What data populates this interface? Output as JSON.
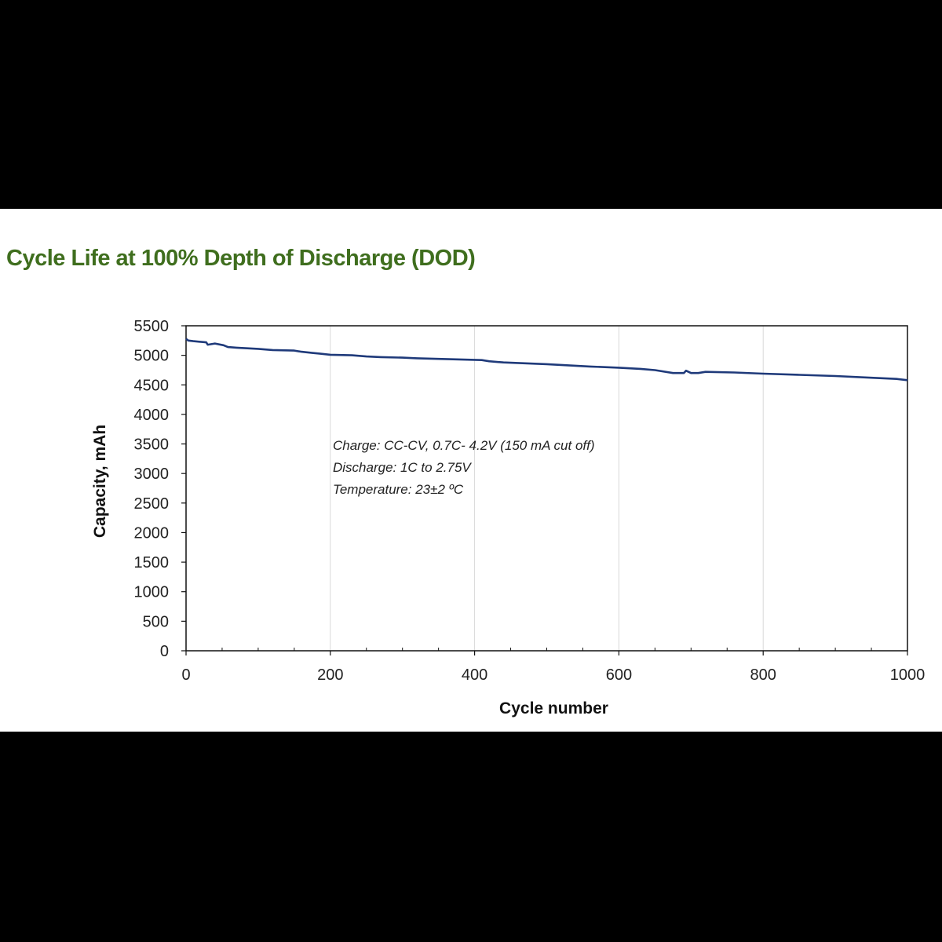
{
  "title": "Cycle Life at 100% Depth of Discharge (DOD)",
  "chart_data": {
    "type": "line",
    "title": "Cycle Life at 100% Depth of Discharge (DOD)",
    "xlabel": "Cycle number",
    "ylabel": "Capacity, mAh",
    "xlim": [
      0,
      1000
    ],
    "ylim": [
      0,
      5500
    ],
    "xticks": [
      0,
      200,
      400,
      600,
      800,
      1000
    ],
    "yticks": [
      0,
      500,
      1000,
      1500,
      2000,
      2500,
      3000,
      3500,
      4000,
      4500,
      5000,
      5500
    ],
    "grid": "vertical",
    "line_color": "#1f3a7a",
    "series": [
      {
        "x": [
          0,
          3,
          10,
          28,
          30,
          40,
          52,
          58,
          70,
          100,
          120,
          150,
          160,
          175,
          185,
          200,
          230,
          250,
          270,
          300,
          320,
          350,
          380,
          410,
          420,
          440,
          460,
          500,
          530,
          560,
          600,
          630,
          650,
          675,
          690,
          693,
          700,
          710,
          720,
          760,
          800,
          850,
          900,
          950,
          985,
          1000
        ],
        "y": [
          5280,
          5250,
          5240,
          5220,
          5180,
          5200,
          5170,
          5140,
          5130,
          5110,
          5090,
          5080,
          5060,
          5040,
          5030,
          5010,
          5000,
          4980,
          4970,
          4960,
          4950,
          4940,
          4930,
          4920,
          4900,
          4880,
          4870,
          4850,
          4830,
          4810,
          4790,
          4770,
          4750,
          4700,
          4700,
          4740,
          4700,
          4700,
          4720,
          4710,
          4690,
          4670,
          4650,
          4620,
          4600,
          4580
        ]
      }
    ],
    "annotations": [
      "Charge: CC-CV, 0.7C- 4.2V (150 mA cut off)",
      "Discharge: 1C to 2.75V",
      "Temperature:  23±2 ºC"
    ]
  }
}
